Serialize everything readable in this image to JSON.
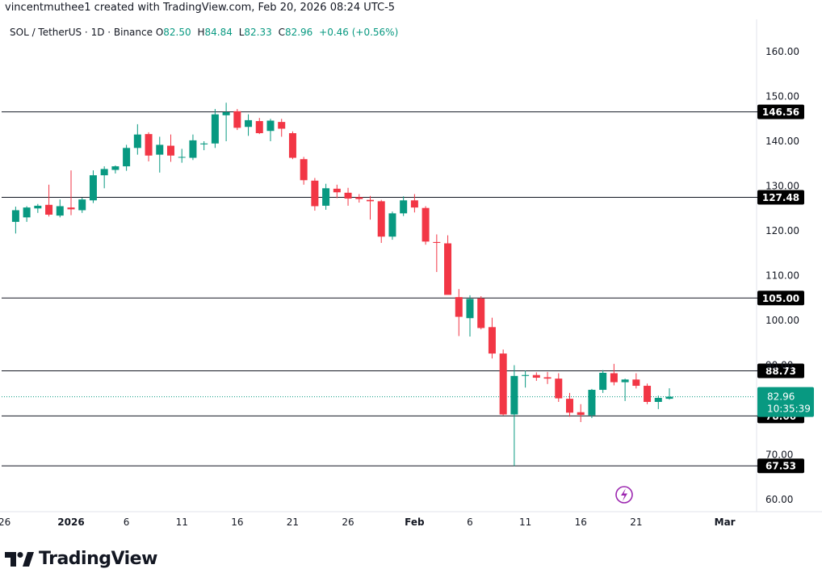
{
  "header": {
    "credit": "vincentmuthee1 created with TradingView.com, Feb 20, 2026 08:24 UTC-5"
  },
  "legend": {
    "symbol": "SOL / TetherUS · 1D · Binance",
    "o_label": "O",
    "o_value": "82.50",
    "h_label": "H",
    "h_value": "84.84",
    "l_label": "L",
    "l_value": "82.33",
    "c_label": "C",
    "c_value": "82.96",
    "change": "+0.46 (+0.56%)"
  },
  "brand": {
    "name": "TradingView",
    "logo_icon": "tradingview-logo-icon"
  },
  "colors": {
    "up": "#089981",
    "down": "#f23645",
    "text": "#131722",
    "axis_text": "#131722",
    "last_price_bg": "#089981"
  },
  "chart_data": {
    "type": "candlestick",
    "y_ticks": [
      "160.00",
      "150.00",
      "140.00",
      "130.00",
      "120.00",
      "110.00",
      "100.00",
      "90.00",
      "70.00",
      "60.00"
    ],
    "y_tick_values": [
      160,
      150,
      140,
      130,
      120,
      110,
      100,
      90,
      70,
      60
    ],
    "ylim": [
      56,
      166
    ],
    "x_ticks": [
      {
        "label": "26",
        "day": -6
      },
      {
        "label": "2026",
        "day": 0
      },
      {
        "label": "6",
        "day": 5
      },
      {
        "label": "11",
        "day": 10
      },
      {
        "label": "16",
        "day": 15
      },
      {
        "label": "21",
        "day": 20
      },
      {
        "label": "26",
        "day": 25
      },
      {
        "label": "Feb",
        "day": 31
      },
      {
        "label": "6",
        "day": 36
      },
      {
        "label": "11",
        "day": 41
      },
      {
        "label": "16",
        "day": 46
      },
      {
        "label": "21",
        "day": 51
      },
      {
        "label": "Mar",
        "day": 59
      }
    ],
    "horizontal_levels": [
      {
        "value": 146.56,
        "label": "146.56"
      },
      {
        "value": 127.48,
        "label": "127.48"
      },
      {
        "value": 105.0,
        "label": "105.00"
      },
      {
        "value": 88.73,
        "label": "88.73"
      },
      {
        "value": 78.66,
        "label": "78.66"
      },
      {
        "value": 67.53,
        "label": "67.53"
      }
    ],
    "last_price": {
      "value": 82.96,
      "label": "82.96",
      "countdown": "10:35:39"
    },
    "candles": [
      {
        "o": 122.0,
        "h": 125.4,
        "l": 119.4,
        "c": 124.6
      },
      {
        "o": 123.0,
        "h": 125.5,
        "l": 122.0,
        "c": 125.2
      },
      {
        "o": 125.0,
        "h": 126.0,
        "l": 124.0,
        "c": 125.6
      },
      {
        "o": 125.8,
        "h": 130.3,
        "l": 123.2,
        "c": 123.6
      },
      {
        "o": 123.4,
        "h": 127.0,
        "l": 123.0,
        "c": 125.5
      },
      {
        "o": 125.2,
        "h": 133.5,
        "l": 123.5,
        "c": 124.8
      },
      {
        "o": 124.6,
        "h": 127.4,
        "l": 124.0,
        "c": 127.0
      },
      {
        "o": 126.8,
        "h": 133.5,
        "l": 126.2,
        "c": 132.4
      },
      {
        "o": 132.4,
        "h": 134.4,
        "l": 129.5,
        "c": 133.8
      },
      {
        "o": 133.6,
        "h": 134.6,
        "l": 132.8,
        "c": 134.4
      },
      {
        "o": 134.4,
        "h": 139.2,
        "l": 133.4,
        "c": 138.5
      },
      {
        "o": 138.5,
        "h": 143.8,
        "l": 137.0,
        "c": 141.5
      },
      {
        "o": 141.6,
        "h": 142.0,
        "l": 135.5,
        "c": 136.8
      },
      {
        "o": 137.0,
        "h": 141.0,
        "l": 133.0,
        "c": 139.2
      },
      {
        "o": 139.0,
        "h": 141.5,
        "l": 135.4,
        "c": 136.8
      },
      {
        "o": 136.5,
        "h": 138.3,
        "l": 135.2,
        "c": 136.5
      },
      {
        "o": 136.3,
        "h": 141.5,
        "l": 135.8,
        "c": 140.2
      },
      {
        "o": 139.3,
        "h": 140.0,
        "l": 138.0,
        "c": 139.5
      },
      {
        "o": 139.5,
        "h": 147.2,
        "l": 138.5,
        "c": 146.0
      },
      {
        "o": 145.8,
        "h": 148.6,
        "l": 140.0,
        "c": 146.5
      },
      {
        "o": 146.7,
        "h": 147.2,
        "l": 142.5,
        "c": 143.0
      },
      {
        "o": 143.2,
        "h": 146.0,
        "l": 141.2,
        "c": 144.7
      },
      {
        "o": 144.5,
        "h": 145.2,
        "l": 141.6,
        "c": 141.8
      },
      {
        "o": 142.3,
        "h": 145.0,
        "l": 140.0,
        "c": 144.6
      },
      {
        "o": 144.3,
        "h": 145.0,
        "l": 141.0,
        "c": 142.8
      },
      {
        "o": 141.8,
        "h": 142.2,
        "l": 136.0,
        "c": 136.3
      },
      {
        "o": 136.0,
        "h": 136.5,
        "l": 130.3,
        "c": 131.3
      },
      {
        "o": 131.2,
        "h": 131.8,
        "l": 124.5,
        "c": 125.5
      },
      {
        "o": 125.6,
        "h": 130.5,
        "l": 124.7,
        "c": 129.5
      },
      {
        "o": 129.4,
        "h": 130.3,
        "l": 127.3,
        "c": 128.6
      },
      {
        "o": 128.5,
        "h": 129.6,
        "l": 125.6,
        "c": 127.2
      },
      {
        "o": 127.5,
        "h": 128.2,
        "l": 126.3,
        "c": 127.1
      },
      {
        "o": 126.9,
        "h": 127.8,
        "l": 122.5,
        "c": 126.6
      },
      {
        "o": 126.6,
        "h": 126.9,
        "l": 117.3,
        "c": 118.7
      },
      {
        "o": 118.7,
        "h": 124.3,
        "l": 118.0,
        "c": 123.9
      },
      {
        "o": 123.9,
        "h": 127.7,
        "l": 123.3,
        "c": 126.8
      },
      {
        "o": 126.8,
        "h": 128.2,
        "l": 124.1,
        "c": 125.2
      },
      {
        "o": 125.1,
        "h": 125.5,
        "l": 116.9,
        "c": 117.6
      },
      {
        "o": 117.5,
        "h": 119.2,
        "l": 110.8,
        "c": 117.3
      },
      {
        "o": 117.2,
        "h": 119.0,
        "l": 106.0,
        "c": 105.7
      },
      {
        "o": 105.2,
        "h": 107.0,
        "l": 96.5,
        "c": 100.8
      },
      {
        "o": 100.5,
        "h": 105.6,
        "l": 96.4,
        "c": 104.8
      },
      {
        "o": 104.9,
        "h": 105.4,
        "l": 98.0,
        "c": 98.3
      },
      {
        "o": 98.5,
        "h": 100.6,
        "l": 91.5,
        "c": 92.6
      },
      {
        "o": 92.6,
        "h": 93.5,
        "l": 78.8,
        "c": 79.0
      },
      {
        "o": 79.0,
        "h": 90.0,
        "l": 67.5,
        "c": 87.6
      },
      {
        "o": 87.6,
        "h": 88.8,
        "l": 85.0,
        "c": 87.8
      },
      {
        "o": 87.8,
        "h": 88.4,
        "l": 86.5,
        "c": 87.2
      },
      {
        "o": 87.3,
        "h": 88.5,
        "l": 85.8,
        "c": 87.0
      },
      {
        "o": 87.0,
        "h": 88.2,
        "l": 81.8,
        "c": 82.6
      },
      {
        "o": 82.5,
        "h": 83.8,
        "l": 78.5,
        "c": 79.4
      },
      {
        "o": 79.5,
        "h": 81.3,
        "l": 77.3,
        "c": 78.9
      },
      {
        "o": 78.8,
        "h": 84.7,
        "l": 78.2,
        "c": 84.5
      },
      {
        "o": 84.5,
        "h": 88.9,
        "l": 83.8,
        "c": 88.3
      },
      {
        "o": 88.2,
        "h": 90.3,
        "l": 85.5,
        "c": 86.2
      },
      {
        "o": 86.2,
        "h": 87.0,
        "l": 82.0,
        "c": 86.8
      },
      {
        "o": 86.8,
        "h": 88.2,
        "l": 84.8,
        "c": 85.4
      },
      {
        "o": 85.4,
        "h": 85.9,
        "l": 81.3,
        "c": 81.8
      },
      {
        "o": 81.8,
        "h": 83.2,
        "l": 80.2,
        "c": 82.7
      },
      {
        "o": 82.5,
        "h": 84.84,
        "l": 82.33,
        "c": 82.96
      }
    ]
  }
}
